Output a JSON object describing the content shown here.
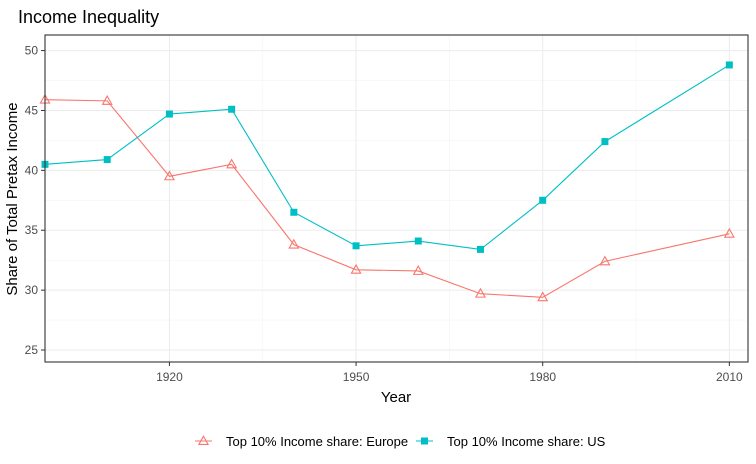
{
  "chart_data": {
    "type": "line",
    "title": "Income Inequality",
    "xlabel": "Year",
    "ylabel": "Share of Total Pretax Income",
    "xlim": [
      1900,
      2013
    ],
    "ylim": [
      24,
      51.3
    ],
    "x_ticks": [
      1920,
      1950,
      1980,
      2010
    ],
    "y_ticks": [
      25,
      30,
      35,
      40,
      45,
      50
    ],
    "grid": true,
    "legend_position": "bottom",
    "series": [
      {
        "name": "Top 10% Income share: Europe",
        "color": "#F8766D",
        "marker": "triangle-open",
        "x": [
          1900,
          1910,
          1920,
          1930,
          1940,
          1950,
          1960,
          1970,
          1980,
          1990,
          2010
        ],
        "values": [
          45.9,
          45.8,
          39.5,
          40.5,
          33.8,
          31.7,
          31.6,
          29.7,
          29.4,
          32.4,
          34.7
        ]
      },
      {
        "name": "Top 10% Income share: US",
        "color": "#00BFC4",
        "marker": "square",
        "x": [
          1900,
          1910,
          1920,
          1930,
          1940,
          1950,
          1960,
          1970,
          1980,
          1990,
          2010
        ],
        "values": [
          40.5,
          40.9,
          44.7,
          45.1,
          36.5,
          33.7,
          34.1,
          33.4,
          37.5,
          42.4,
          48.8
        ]
      }
    ]
  }
}
